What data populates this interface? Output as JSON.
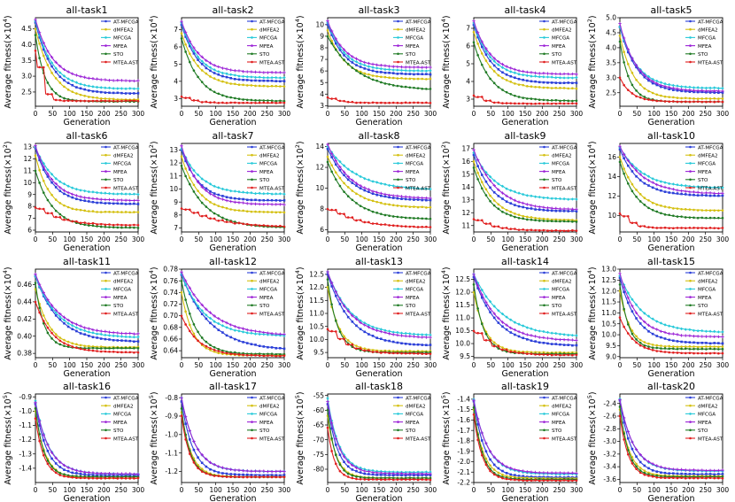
{
  "xlabel": "Generation",
  "ylabel_prefix": "Average fitness(×10",
  "ylabel_suffix": ")",
  "x_ticks": [
    0,
    50,
    100,
    150,
    200,
    250,
    300
  ],
  "series": [
    {
      "name": "AT-MFCGA",
      "color": "#2b3fd8",
      "marker": "square"
    },
    {
      "name": "dMFEA2",
      "color": "#d4c011",
      "marker": "dot"
    },
    {
      "name": "MFCGA",
      "color": "#27c9d9",
      "marker": "diamond"
    },
    {
      "name": "MFEA",
      "color": "#9b22d6",
      "marker": "plus"
    },
    {
      "name": "STO",
      "color": "#1f7a24",
      "marker": "dot"
    },
    {
      "name": "MTEA-AST",
      "color": "#e01e1e",
      "marker": "dot"
    }
  ],
  "chart_data": [
    {
      "type": "line",
      "title": "all-task1",
      "exp": "4",
      "ylim": [
        2.05,
        4.85
      ],
      "yticks": [
        2.5,
        3.0,
        3.5,
        4.0,
        4.5
      ],
      "dec": 1,
      "curves": [
        {
          "start": 4.7,
          "end": 2.45,
          "k": 0.02
        },
        {
          "start": 4.5,
          "end": 2.25,
          "k": 0.02
        },
        {
          "start": 4.75,
          "end": 2.6,
          "k": 0.02
        },
        {
          "start": 4.8,
          "end": 2.85,
          "k": 0.02
        },
        {
          "start": 4.3,
          "end": 2.2,
          "k": 0.035
        },
        {
          "start": 3.8,
          "end": 2.22,
          "k": 0.08,
          "step": true
        }
      ]
    },
    {
      "type": "line",
      "title": "all-task2",
      "exp": "4",
      "ylim": [
        2.55,
        7.7
      ],
      "yticks": [
        3,
        4,
        5,
        6,
        7
      ],
      "dec": 0,
      "curves": [
        {
          "start": 7.3,
          "end": 4.0,
          "k": 0.02
        },
        {
          "start": 6.8,
          "end": 3.7,
          "k": 0.02
        },
        {
          "start": 7.4,
          "end": 4.2,
          "k": 0.02
        },
        {
          "start": 7.5,
          "end": 4.5,
          "k": 0.02
        },
        {
          "start": 6.5,
          "end": 2.85,
          "k": 0.02
        },
        {
          "start": 3.1,
          "end": 2.75,
          "k": 0.04,
          "step": true
        }
      ]
    },
    {
      "type": "line",
      "title": "all-task3",
      "exp": "4",
      "ylim": [
        2.95,
        10.6
      ],
      "yticks": [
        3,
        4,
        5,
        6,
        7,
        8,
        9,
        10
      ],
      "dec": 0,
      "curves": [
        {
          "start": 10.0,
          "end": 5.7,
          "k": 0.02
        },
        {
          "start": 9.5,
          "end": 5.3,
          "k": 0.02
        },
        {
          "start": 10.2,
          "end": 6.0,
          "k": 0.02
        },
        {
          "start": 10.3,
          "end": 6.3,
          "k": 0.02
        },
        {
          "start": 9.0,
          "end": 4.3,
          "k": 0.012
        },
        {
          "start": 3.7,
          "end": 3.25,
          "k": 0.04,
          "step": true
        }
      ]
    },
    {
      "type": "line",
      "title": "all-task4",
      "exp": "4",
      "ylim": [
        2.6,
        7.6
      ],
      "yticks": [
        3,
        4,
        5,
        6,
        7
      ],
      "dec": 0,
      "curves": [
        {
          "start": 7.2,
          "end": 3.9,
          "k": 0.02
        },
        {
          "start": 6.8,
          "end": 3.6,
          "k": 0.02
        },
        {
          "start": 7.3,
          "end": 4.2,
          "k": 0.02
        },
        {
          "start": 7.4,
          "end": 4.4,
          "k": 0.02
        },
        {
          "start": 6.2,
          "end": 2.9,
          "k": 0.02
        },
        {
          "start": 3.2,
          "end": 2.75,
          "k": 0.04,
          "step": true
        }
      ]
    },
    {
      "type": "line",
      "title": "all-task5",
      "exp": "2",
      "ylim": [
        2.05,
        5.0
      ],
      "yticks": [
        2.5,
        3.0,
        3.5,
        4.0,
        4.5,
        5.0
      ],
      "dec": 1,
      "curves": [
        {
          "start": 4.7,
          "end": 2.5,
          "k": 0.02
        },
        {
          "start": 4.4,
          "end": 2.3,
          "k": 0.025
        },
        {
          "start": 4.7,
          "end": 2.65,
          "k": 0.02
        },
        {
          "start": 4.8,
          "end": 2.55,
          "k": 0.02
        },
        {
          "start": 4.2,
          "end": 2.2,
          "k": 0.035
        },
        {
          "start": 3.0,
          "end": 2.2,
          "k": 0.03
        }
      ]
    },
    {
      "type": "line",
      "title": "all-task6",
      "exp": "2",
      "ylim": [
        5.85,
        13.3
      ],
      "yticks": [
        6,
        7,
        8,
        9,
        10,
        11,
        12,
        13
      ],
      "dec": 0,
      "curves": [
        {
          "start": 12.9,
          "end": 8.2,
          "k": 0.02
        },
        {
          "start": 12.3,
          "end": 7.5,
          "k": 0.025
        },
        {
          "start": 13.0,
          "end": 9.0,
          "k": 0.018
        },
        {
          "start": 13.1,
          "end": 8.5,
          "k": 0.02
        },
        {
          "start": 11.0,
          "end": 6.2,
          "k": 0.02
        },
        {
          "start": 7.9,
          "end": 6.4,
          "k": 0.015,
          "step": true
        }
      ]
    },
    {
      "type": "line",
      "title": "all-task7",
      "exp": "2",
      "ylim": [
        6.7,
        13.5
      ],
      "yticks": [
        7,
        8,
        9,
        10,
        11,
        12,
        13
      ],
      "dec": 0,
      "curves": [
        {
          "start": 13.0,
          "end": 9.1,
          "k": 0.02
        },
        {
          "start": 12.5,
          "end": 8.2,
          "k": 0.02
        },
        {
          "start": 13.1,
          "end": 9.6,
          "k": 0.018
        },
        {
          "start": 13.3,
          "end": 8.8,
          "k": 0.02
        },
        {
          "start": 11.8,
          "end": 7.0,
          "k": 0.015
        },
        {
          "start": 8.5,
          "end": 7.05,
          "k": 0.01,
          "step": true
        }
      ]
    },
    {
      "type": "line",
      "title": "all-task8",
      "exp": "2",
      "ylim": [
        5.8,
        14.3
      ],
      "yticks": [
        6,
        8,
        10,
        12,
        14
      ],
      "dec": 0,
      "curves": [
        {
          "start": 13.8,
          "end": 8.8,
          "k": 0.015
        },
        {
          "start": 13.0,
          "end": 8.1,
          "k": 0.015
        },
        {
          "start": 14.0,
          "end": 9.8,
          "k": 0.012
        },
        {
          "start": 14.2,
          "end": 9.0,
          "k": 0.015
        },
        {
          "start": 12.5,
          "end": 7.0,
          "k": 0.015
        },
        {
          "start": 8.0,
          "end": 6.2,
          "k": 0.012,
          "step": true
        }
      ]
    },
    {
      "type": "line",
      "title": "all-task9",
      "exp": "2",
      "ylim": [
        10.5,
        17.4
      ],
      "yticks": [
        11,
        12,
        13,
        14,
        15,
        16,
        17
      ],
      "dec": 0,
      "curves": [
        {
          "start": 16.5,
          "end": 12.1,
          "k": 0.018
        },
        {
          "start": 16.0,
          "end": 11.4,
          "k": 0.018
        },
        {
          "start": 16.7,
          "end": 13.0,
          "k": 0.015
        },
        {
          "start": 16.9,
          "end": 12.2,
          "k": 0.015
        },
        {
          "start": 15.5,
          "end": 11.3,
          "k": 0.02
        },
        {
          "start": 11.5,
          "end": 10.6,
          "k": 0.02,
          "step": true
        }
      ]
    },
    {
      "type": "line",
      "title": "all-task10",
      "exp": "4",
      "ylim": [
        8.3,
        17.4
      ],
      "yticks": [
        10,
        12,
        14,
        16
      ],
      "dec": 0,
      "curves": [
        {
          "start": 16.8,
          "end": 12.0,
          "k": 0.018
        },
        {
          "start": 16.0,
          "end": 10.5,
          "k": 0.02
        },
        {
          "start": 17.0,
          "end": 12.8,
          "k": 0.015
        },
        {
          "start": 17.1,
          "end": 12.2,
          "k": 0.015
        },
        {
          "start": 15.5,
          "end": 9.7,
          "k": 0.02
        },
        {
          "start": 10.2,
          "end": 8.7,
          "k": 0.04,
          "step": true
        }
      ]
    },
    {
      "type": "line",
      "title": "all-task11",
      "exp": "4",
      "ylim": [
        0.375,
        0.478
      ],
      "yticks": [
        0.38,
        0.4,
        0.42,
        0.44,
        0.46
      ],
      "dec": 2,
      "curves": [
        {
          "start": 0.47,
          "end": 0.393,
          "k": 0.015
        },
        {
          "start": 0.455,
          "end": 0.387,
          "k": 0.025
        },
        {
          "start": 0.47,
          "end": 0.398,
          "k": 0.015
        },
        {
          "start": 0.472,
          "end": 0.402,
          "k": 0.015
        },
        {
          "start": 0.462,
          "end": 0.386,
          "k": 0.04
        },
        {
          "start": 0.44,
          "end": 0.381,
          "k": 0.02
        }
      ]
    },
    {
      "type": "line",
      "title": "all-task12",
      "exp": "4",
      "ylim": [
        0.628,
        0.78
      ],
      "yticks": [
        0.64,
        0.66,
        0.68,
        0.7,
        0.72,
        0.74,
        0.76,
        0.78
      ],
      "dec": 2,
      "curves": [
        {
          "start": 0.77,
          "end": 0.64,
          "k": 0.012
        },
        {
          "start": 0.74,
          "end": 0.632,
          "k": 0.03
        },
        {
          "start": 0.772,
          "end": 0.665,
          "k": 0.015
        },
        {
          "start": 0.775,
          "end": 0.665,
          "k": 0.012
        },
        {
          "start": 0.76,
          "end": 0.634,
          "k": 0.025
        },
        {
          "start": 0.7,
          "end": 0.631,
          "k": 0.02
        }
      ]
    },
    {
      "type": "line",
      "title": "all-task13",
      "exp": "4",
      "ylim": [
        9.3,
        12.7
      ],
      "yticks": [
        9.5,
        10.0,
        10.5,
        11.0,
        11.5,
        12.0,
        12.5
      ],
      "dec": 1,
      "curves": [
        {
          "start": 12.5,
          "end": 9.75,
          "k": 0.015
        },
        {
          "start": 12.0,
          "end": 9.55,
          "k": 0.03
        },
        {
          "start": 12.6,
          "end": 10.15,
          "k": 0.015
        },
        {
          "start": 12.6,
          "end": 10.05,
          "k": 0.015
        },
        {
          "start": 12.3,
          "end": 9.5,
          "k": 0.035
        },
        {
          "start": 10.4,
          "end": 9.45,
          "k": 0.02,
          "step": true
        }
      ]
    },
    {
      "type": "line",
      "title": "all-task14",
      "exp": "4",
      "ylim": [
        9.45,
        12.9
      ],
      "yticks": [
        9.5,
        10.0,
        10.5,
        11.0,
        11.5,
        12.0,
        12.5
      ],
      "dec": 1,
      "curves": [
        {
          "start": 12.6,
          "end": 9.9,
          "k": 0.015
        },
        {
          "start": 12.0,
          "end": 9.65,
          "k": 0.03
        },
        {
          "start": 12.7,
          "end": 10.25,
          "k": 0.012
        },
        {
          "start": 12.7,
          "end": 10.1,
          "k": 0.015
        },
        {
          "start": 12.3,
          "end": 9.6,
          "k": 0.035
        },
        {
          "start": 10.5,
          "end": 9.55,
          "k": 0.02,
          "step": true
        }
      ]
    },
    {
      "type": "line",
      "title": "all-task15",
      "exp": "4",
      "ylim": [
        8.95,
        13.0
      ],
      "yticks": [
        9.0,
        9.5,
        10.0,
        10.5,
        11.0,
        11.5,
        12.0,
        12.5,
        13.0
      ],
      "dec": 1,
      "curves": [
        {
          "start": 12.6,
          "end": 9.6,
          "k": 0.02
        },
        {
          "start": 12.0,
          "end": 9.45,
          "k": 0.035
        },
        {
          "start": 12.7,
          "end": 10.1,
          "k": 0.015
        },
        {
          "start": 12.8,
          "end": 9.9,
          "k": 0.02
        },
        {
          "start": 12.3,
          "end": 9.35,
          "k": 0.04
        },
        {
          "start": 10.8,
          "end": 9.15,
          "k": 0.025
        }
      ]
    },
    {
      "type": "line",
      "title": "all-task16",
      "exp": "5",
      "ylim": [
        -1.5,
        -0.88
      ],
      "yticks": [
        -1.4,
        -1.3,
        -1.2,
        -1.1,
        -1.0,
        -0.9
      ],
      "dec": 1,
      "curves": [
        {
          "start": -0.95,
          "end": -1.45,
          "k": 0.03
        },
        {
          "start": -1.0,
          "end": -1.47,
          "k": 0.035
        },
        {
          "start": -0.93,
          "end": -1.44,
          "k": 0.025
        },
        {
          "start": -0.94,
          "end": -1.44,
          "k": 0.025
        },
        {
          "start": -0.98,
          "end": -1.46,
          "k": 0.04
        },
        {
          "start": -1.05,
          "end": -1.47,
          "k": 0.04
        }
      ]
    },
    {
      "type": "line",
      "title": "all-task17",
      "exp": "5",
      "ylim": [
        -1.26,
        -0.78
      ],
      "yticks": [
        -1.2,
        -1.1,
        -1.0,
        -0.9,
        -0.8
      ],
      "dec": 1,
      "curves": [
        {
          "start": -0.82,
          "end": -1.22,
          "k": 0.03
        },
        {
          "start": -0.88,
          "end": -1.23,
          "k": 0.035
        },
        {
          "start": -0.8,
          "end": -1.2,
          "k": 0.025
        },
        {
          "start": -0.8,
          "end": -1.2,
          "k": 0.025
        },
        {
          "start": -0.86,
          "end": -1.23,
          "k": 0.04
        },
        {
          "start": -0.9,
          "end": -1.23,
          "k": 0.04
        }
      ]
    },
    {
      "type": "line",
      "title": "all-task18",
      "exp": "5",
      "ylim": [
        -84.5,
        -54.5
      ],
      "yticks": [
        -80,
        -75,
        -70,
        -65,
        -60,
        -55
      ],
      "dec": 0,
      "curves": [
        {
          "start": -58,
          "end": -82,
          "k": 0.035
        },
        {
          "start": -62,
          "end": -83,
          "k": 0.04
        },
        {
          "start": -56,
          "end": -81,
          "k": 0.03
        },
        {
          "start": -57,
          "end": -81.5,
          "k": 0.03
        },
        {
          "start": -60,
          "end": -83,
          "k": 0.045
        },
        {
          "start": -66,
          "end": -83.5,
          "k": 0.05
        }
      ]
    },
    {
      "type": "line",
      "title": "all-task19",
      "exp": "5",
      "ylim": [
        -2.2,
        -1.35
      ],
      "yticks": [
        -2.2,
        -2.1,
        -2.0,
        -1.9,
        -1.8,
        -1.7,
        -1.6,
        -1.5,
        -1.4
      ],
      "dec": 1,
      "curves": [
        {
          "start": -1.42,
          "end": -2.15,
          "k": 0.03
        },
        {
          "start": -1.5,
          "end": -2.16,
          "k": 0.035
        },
        {
          "start": -1.4,
          "end": -2.12,
          "k": 0.025
        },
        {
          "start": -1.41,
          "end": -2.11,
          "k": 0.025
        },
        {
          "start": -1.48,
          "end": -2.17,
          "k": 0.04
        },
        {
          "start": -1.55,
          "end": -2.18,
          "k": 0.04
        }
      ]
    },
    {
      "type": "line",
      "title": "all-task20",
      "exp": "5",
      "ylim": [
        -3.65,
        -2.25
      ],
      "yticks": [
        -3.6,
        -3.4,
        -3.2,
        -3.0,
        -2.8,
        -2.6,
        -2.4
      ],
      "dec": 1,
      "curves": [
        {
          "start": -2.35,
          "end": -3.52,
          "k": 0.03
        },
        {
          "start": -2.5,
          "end": -3.55,
          "k": 0.035
        },
        {
          "start": -2.33,
          "end": -3.47,
          "k": 0.025
        },
        {
          "start": -2.34,
          "end": -3.46,
          "k": 0.025
        },
        {
          "start": -2.45,
          "end": -3.56,
          "k": 0.04
        },
        {
          "start": -2.6,
          "end": -3.58,
          "k": 0.04
        }
      ]
    }
  ]
}
